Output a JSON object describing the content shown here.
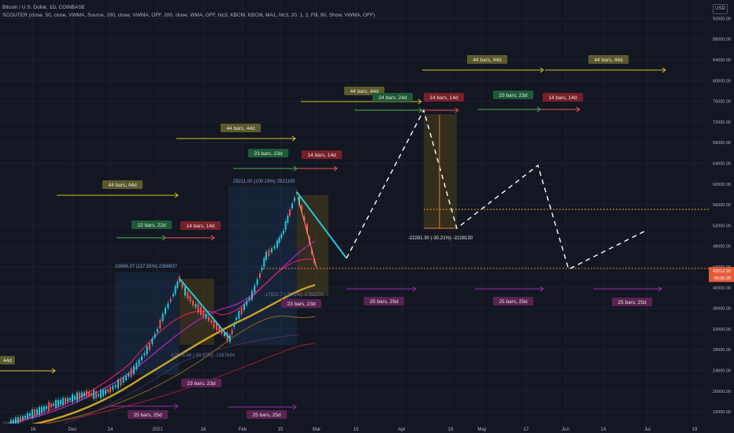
{
  "header": {
    "title": "Bitcoin / U.S. Dollar, 1D, COINBASE",
    "indicator": "SCOUTER (close, 50, close, VWMA, Source, 100, close, VWMA, OFF, 200, close, WMA, OFF, hlc3, KBCM, KBCM, MA1, hlc3, 20, 1, 2, Fill, 90, Show, VWMA, OFF)"
  },
  "price_axis": {
    "currency": "USD",
    "ticks": [
      "92000.00",
      "88000.00",
      "84000.00",
      "80000.00",
      "76000.00",
      "72000.00",
      "68000.00",
      "64000.00",
      "60000.00",
      "56000.00",
      "52000.00",
      "48000.00",
      "44000.00",
      "40000.00",
      "36000.00",
      "32000.00",
      "28000.00",
      "24000.00",
      "20000.00",
      "16000.00"
    ],
    "current_price": "43212.93",
    "countdown": "06:00:25"
  },
  "time_axis": {
    "ticks": [
      "16",
      "Dec",
      "14",
      "2021",
      "18",
      "Feb",
      "15",
      "Mar",
      "15",
      "Apr",
      "19",
      "May",
      "17",
      "Jun",
      "14",
      "Jul",
      "19"
    ]
  },
  "bar_labels": [
    {
      "text": "44d",
      "color": "#5c5a2a"
    },
    {
      "text": "44 bars, 44d",
      "color": "#5c5a2a"
    },
    {
      "text": "22 bars, 22d",
      "color": "#1e5a36"
    },
    {
      "text": "14 bars, 14d",
      "color": "#7a1f2a"
    },
    {
      "text": "44 bars, 44d",
      "color": "#5c5a2a"
    },
    {
      "text": "23 bars, 23d",
      "color": "#1e5a36"
    },
    {
      "text": "14 bars, 14d",
      "color": "#7a1f2a"
    },
    {
      "text": "44 bars, 44d",
      "color": "#5c5a2a"
    },
    {
      "text": "24 bars, 24d",
      "color": "#1e5a36"
    },
    {
      "text": "14 bars, 14d",
      "color": "#7a1f2a"
    },
    {
      "text": "44 bars, 44d",
      "color": "#5c5a2a"
    },
    {
      "text": "44 bars, 44d",
      "color": "#5c5a2a"
    },
    {
      "text": "23 bars, 23d",
      "color": "#1e5a36"
    },
    {
      "text": "14 bars, 14d",
      "color": "#7a1f2a"
    },
    {
      "text": "23 bars, 23d",
      "color": "#5a2250"
    },
    {
      "text": "23 bars, 23d",
      "color": "#5a2250"
    },
    {
      "text": "25 bars, 25d",
      "color": "#5a2250"
    },
    {
      "text": "25 bars, 25d",
      "color": "#5a2250"
    },
    {
      "text": "25 bars, 25d",
      "color": "#5a2250"
    },
    {
      "text": "25 bars, 25d",
      "color": "#5a2250"
    },
    {
      "text": "25 bars, 25d",
      "color": "#5a2250"
    }
  ],
  "measure_labels": [
    "-22281.30 (-30.21%) -2228130",
    "29211.00 (100.19%) 2921100",
    "23686.37 (117.55%) 2368637",
    "-12676.94 (-30.10%) -1267694",
    "-17822.7 (-30.1%) -1782270"
  ],
  "colors": {
    "background": "#131722",
    "candle_up": "#26c6da",
    "candle_down": "#ef5350",
    "projection": "#ffffff",
    "trendline": "#26c6da",
    "ma1": "#c9a227",
    "ma2": "#d81b60",
    "ma3": "#9c27b0",
    "ma4": "#7a5c1a",
    "ma5": "#8b1a2a"
  }
}
